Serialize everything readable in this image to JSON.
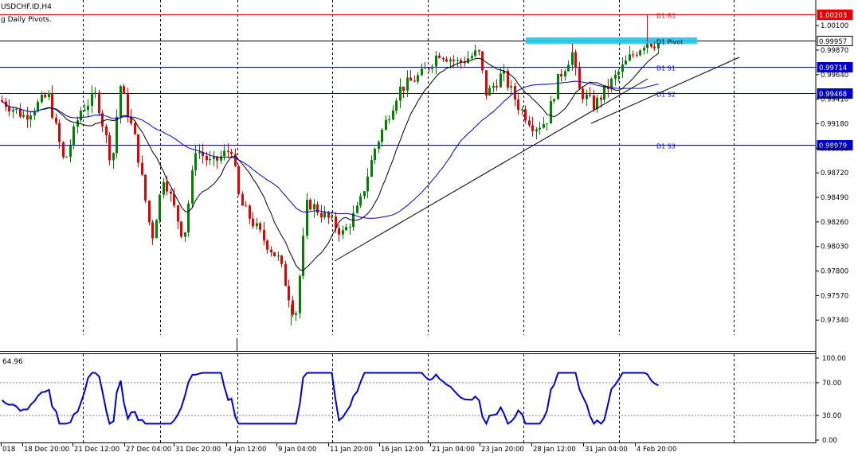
{
  "header": {
    "symbol": "USDCHF.ID,H4",
    "indicator_title": "g Daily Pivots."
  },
  "pivots": [
    {
      "label": "D1 R1",
      "value": 1.00203,
      "tag": "1.00203",
      "color": "#e00000"
    },
    {
      "label": "D1 Pivot",
      "value": 0.99957,
      "tag": "0.99957",
      "color": "#000000"
    },
    {
      "label": "D1 S1",
      "value": 0.99714,
      "tag": "0.99714",
      "color": "#0000c8"
    },
    {
      "label": "D1 S2",
      "value": 0.99468,
      "tag": "0.99468",
      "color": "#0000c8"
    },
    {
      "label": "D1 S3",
      "value": 0.98979,
      "tag": "0.98979",
      "color": "#0000c8"
    }
  ],
  "price_axis": [
    "1.00100",
    "0.99870",
    "0.99640",
    "0.99410",
    "0.99180",
    "0.98950",
    "0.98720",
    "0.98490",
    "0.98260",
    "0.98030",
    "0.97800",
    "0.97570",
    "0.97340"
  ],
  "time_axis": [
    "018",
    "18 Dec 20:00",
    "21 Dec 12:00",
    "27 Dec 04:00",
    "31 Dec 20:00",
    "4 Jan 12:00",
    "9 Jan 04:00",
    "11 Jan 20:00",
    "16 Jan 12:00",
    "21 Jan 04:00",
    "23 Jan 20:00",
    "28 Jan 12:00",
    "31 Jan 04:00",
    "4 Feb 20:00"
  ],
  "oscillator": {
    "value_label": "64.96",
    "axis": [
      "100.00",
      "70.00",
      "30.00",
      "0.00"
    ],
    "levels": [
      70,
      30
    ]
  },
  "colors": {
    "bull": "#008000",
    "bear": "#e00000",
    "ma_long": "#0000c8",
    "ma_short": "#000000",
    "osc_line": "#0000c8",
    "pivot_zone": "#1ec8f0",
    "grid": "#000000"
  },
  "chart_data": {
    "type": "candlestick",
    "price_range": [
      0.972,
      1.0028
    ],
    "oscillator_range": [
      0,
      100
    ]
  }
}
